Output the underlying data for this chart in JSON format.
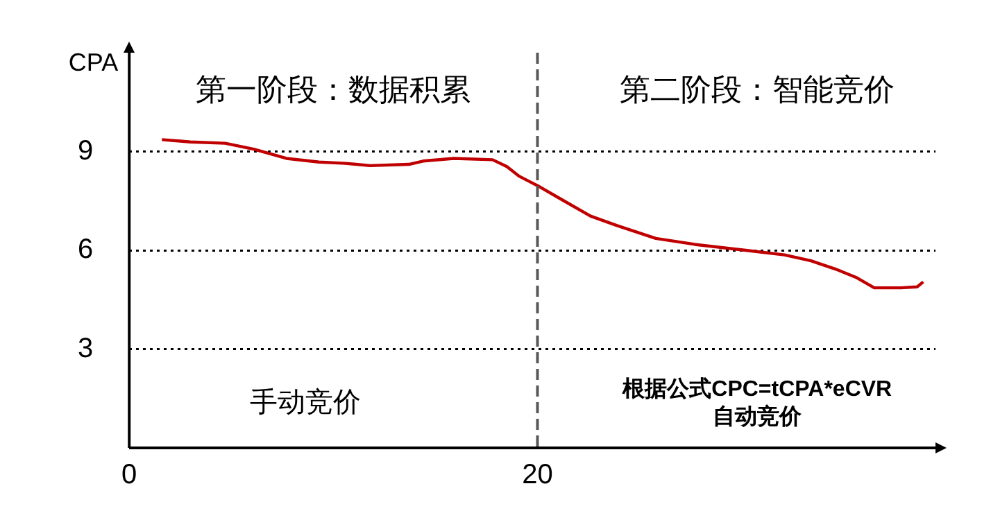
{
  "chart_data": {
    "type": "line",
    "ylabel": "CPA",
    "annotations": [
      "第一阶段：数据积累",
      "第二阶段：智能竞价",
      "手动竞价",
      "根据公式CPC=tCPA*eCVR\n自动竞价"
    ],
    "x": [
      1.6,
      3.0,
      4.7,
      6.1,
      7.7,
      9.3,
      10.6,
      11.8,
      13.7,
      14.4,
      15.9,
      17.8,
      18.5,
      19.1,
      20.1,
      21.3,
      22.6,
      23.9,
      25.8,
      27.7,
      30.2,
      32.1,
      33.4,
      34.6,
      35.6,
      36.5,
      37.8,
      38.6,
      38.9
    ],
    "series": [
      {
        "color": "#c00000",
        "values": [
          9.36,
          9.29,
          9.25,
          9.07,
          8.79,
          8.68,
          8.64,
          8.57,
          8.61,
          8.71,
          8.79,
          8.75,
          8.54,
          8.25,
          7.93,
          7.5,
          7.04,
          6.75,
          6.36,
          6.18,
          6.0,
          5.86,
          5.68,
          5.43,
          5.18,
          4.86,
          4.86,
          4.89,
          5.04
        ]
      }
    ],
    "xlim": [
      0,
      39.5
    ],
    "xticks": [
      0,
      20
    ],
    "ylim": [
      0,
      12
    ],
    "yticks": [
      {
        "value": 0,
        "label": null
      },
      3,
      6,
      9
    ],
    "grid": "y",
    "legend": false,
    "marker": "none",
    "line_style": "solid",
    "ref_lines": [
      {
        "axis": "x",
        "value": 20,
        "line_style": "dashed",
        "color": "#595959"
      }
    ]
  }
}
